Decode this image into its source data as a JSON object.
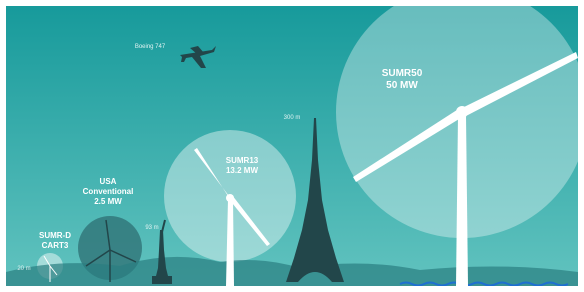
{
  "labels": {
    "plane": "Boeing 747",
    "sumr50_name": "SUMR50",
    "sumr50_power": "50 MW",
    "sumr13_name": "SUMR13",
    "sumr13_power": "13.2 MW",
    "usa_line1": "USA",
    "usa_line2": "Conventional",
    "usa_power": "2.5 MW",
    "sumrd_name": "SUMR-D",
    "sumrd_line2": "CART3",
    "eiffel_height": "300 m",
    "liberty_height": "93 m",
    "small_height": "20 m"
  }
}
